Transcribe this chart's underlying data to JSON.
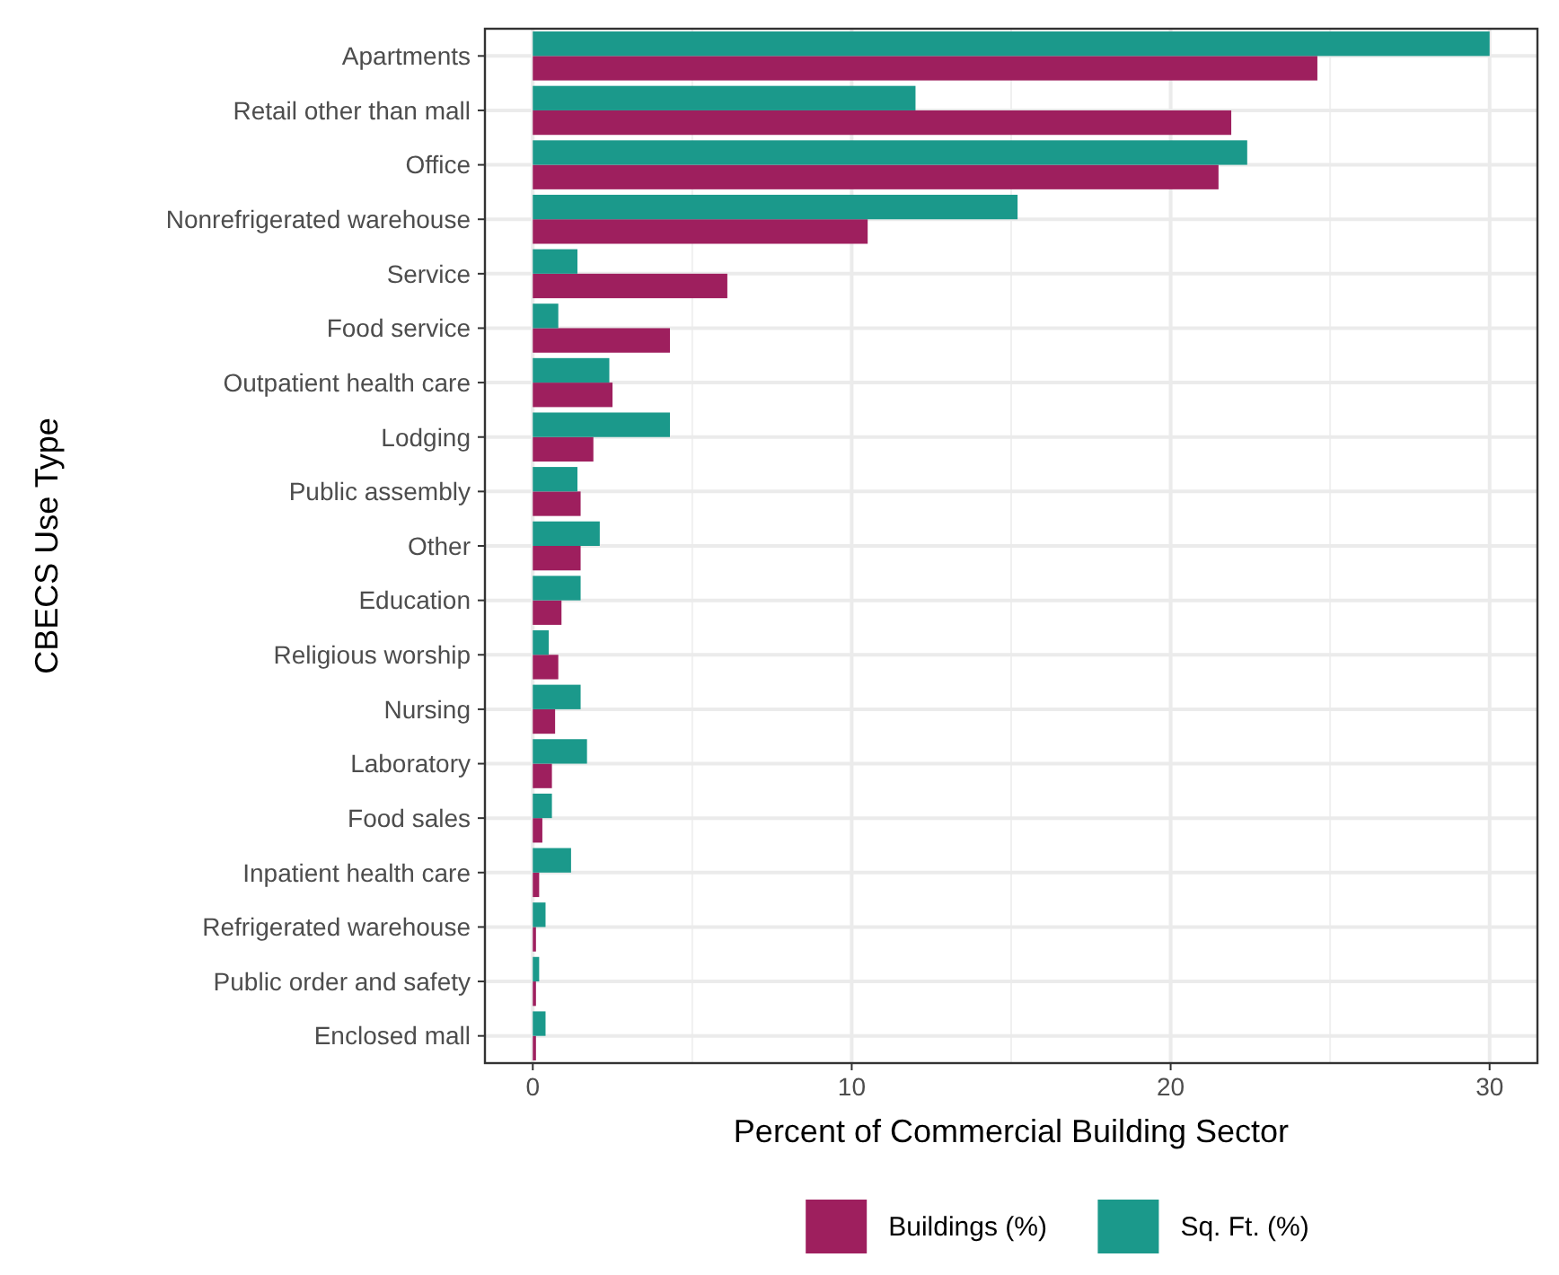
{
  "chart_data": {
    "type": "bar",
    "orientation": "horizontal",
    "xlabel": "Percent of Commercial Building Sector",
    "ylabel": "CBECS Use Type",
    "categories": [
      "Apartments",
      "Retail other than mall",
      "Office",
      "Nonrefrigerated warehouse",
      "Service",
      "Food service",
      "Outpatient health care",
      "Lodging",
      "Public assembly",
      "Other",
      "Education",
      "Religious worship",
      "Nursing",
      "Laboratory",
      "Food sales",
      "Inpatient health care",
      "Refrigerated warehouse",
      "Public order and safety",
      "Enclosed mall"
    ],
    "series": [
      {
        "name": "Buildings (%)",
        "color": "#9e1f5e",
        "values": [
          24.6,
          21.9,
          21.5,
          10.5,
          6.1,
          4.3,
          2.5,
          1.9,
          1.5,
          1.5,
          0.9,
          0.8,
          0.7,
          0.6,
          0.3,
          0.2,
          0.1,
          0.1,
          0.1
        ]
      },
      {
        "name": "Sq. Ft. (%)",
        "color": "#1b998b",
        "values": [
          30.0,
          12.0,
          22.4,
          15.2,
          1.4,
          0.8,
          2.4,
          4.3,
          1.4,
          2.1,
          1.5,
          0.5,
          1.5,
          1.7,
          0.6,
          1.2,
          0.4,
          0.2,
          0.4
        ]
      }
    ],
    "xlim": [
      -1.5,
      31.5
    ],
    "xticks": [
      0,
      10,
      20,
      30
    ],
    "grid": true,
    "legend": "bottom"
  }
}
